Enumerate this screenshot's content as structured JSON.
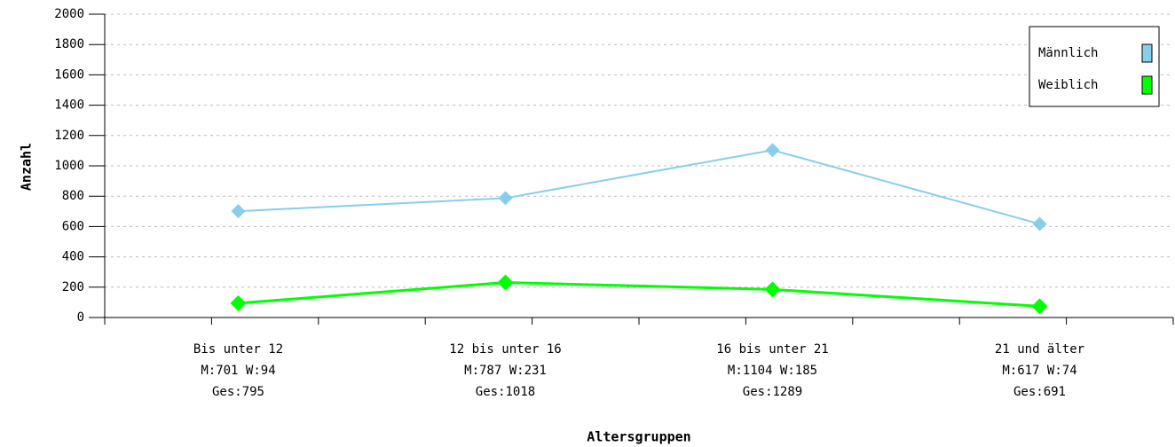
{
  "chart_data": {
    "type": "line",
    "x_label": "Altersgruppen",
    "y_label": "Anzahl",
    "categories": [
      [
        "Bis unter 12",
        "M:701 W:94",
        "Ges:795"
      ],
      [
        "12 bis unter 16",
        "M:787 W:231",
        "Ges:1018"
      ],
      [
        "16 bis unter 21",
        "M:1104 W:185",
        "Ges:1289"
      ],
      [
        "21 und älter",
        "M:617 W:74",
        "Ges:691"
      ]
    ],
    "series": [
      {
        "name": "Männlich",
        "color": "#87ceeb",
        "values": [
          701,
          787,
          1104,
          617
        ]
      },
      {
        "name": "Weiblich",
        "color": "#00ff00",
        "values": [
          94,
          231,
          185,
          74
        ]
      }
    ],
    "ylim": [
      0,
      2000
    ],
    "yticks": [
      0,
      200,
      400,
      600,
      800,
      1000,
      1200,
      1400,
      1600,
      1800,
      2000
    ],
    "grid": true,
    "legend": "top-right"
  }
}
